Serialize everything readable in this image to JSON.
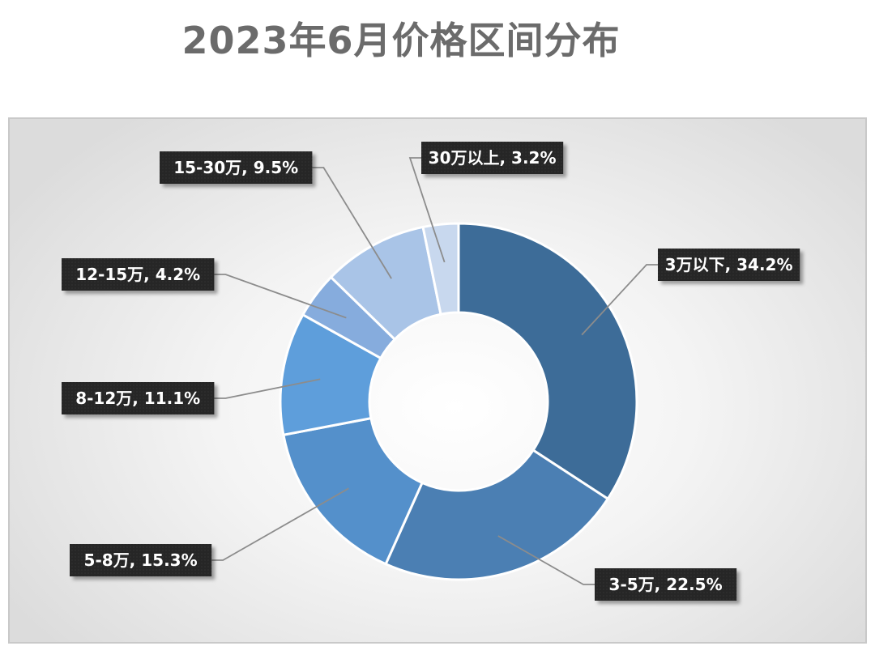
{
  "title": "2023年6月价格区间分布",
  "chart_data": {
    "type": "pie",
    "donut": true,
    "title": "2023年6月价格区间分布",
    "series": [
      {
        "name": "3万以下",
        "value": 34.2,
        "label": "3万以下, 34.2%",
        "color": "#3d6c98"
      },
      {
        "name": "3-5万",
        "value": 22.5,
        "label": "3-5万, 22.5%",
        "color": "#4b7fb3"
      },
      {
        "name": "5-8万",
        "value": 15.3,
        "label": "5-8万, 15.3%",
        "color": "#5490cb"
      },
      {
        "name": "8-12万",
        "value": 11.1,
        "label": "8-12万, 11.1%",
        "color": "#5e9edb"
      },
      {
        "name": "12-15万",
        "value": 4.2,
        "label": "12-15万, 4.2%",
        "color": "#86acdd"
      },
      {
        "name": "15-30万",
        "value": 9.5,
        "label": "15-30万, 9.5%",
        "color": "#a9c4e7"
      },
      {
        "name": "30万以上",
        "value": 3.2,
        "label": "30万以上, 3.2%",
        "color": "#c8d8ee"
      }
    ],
    "legend": "none"
  }
}
